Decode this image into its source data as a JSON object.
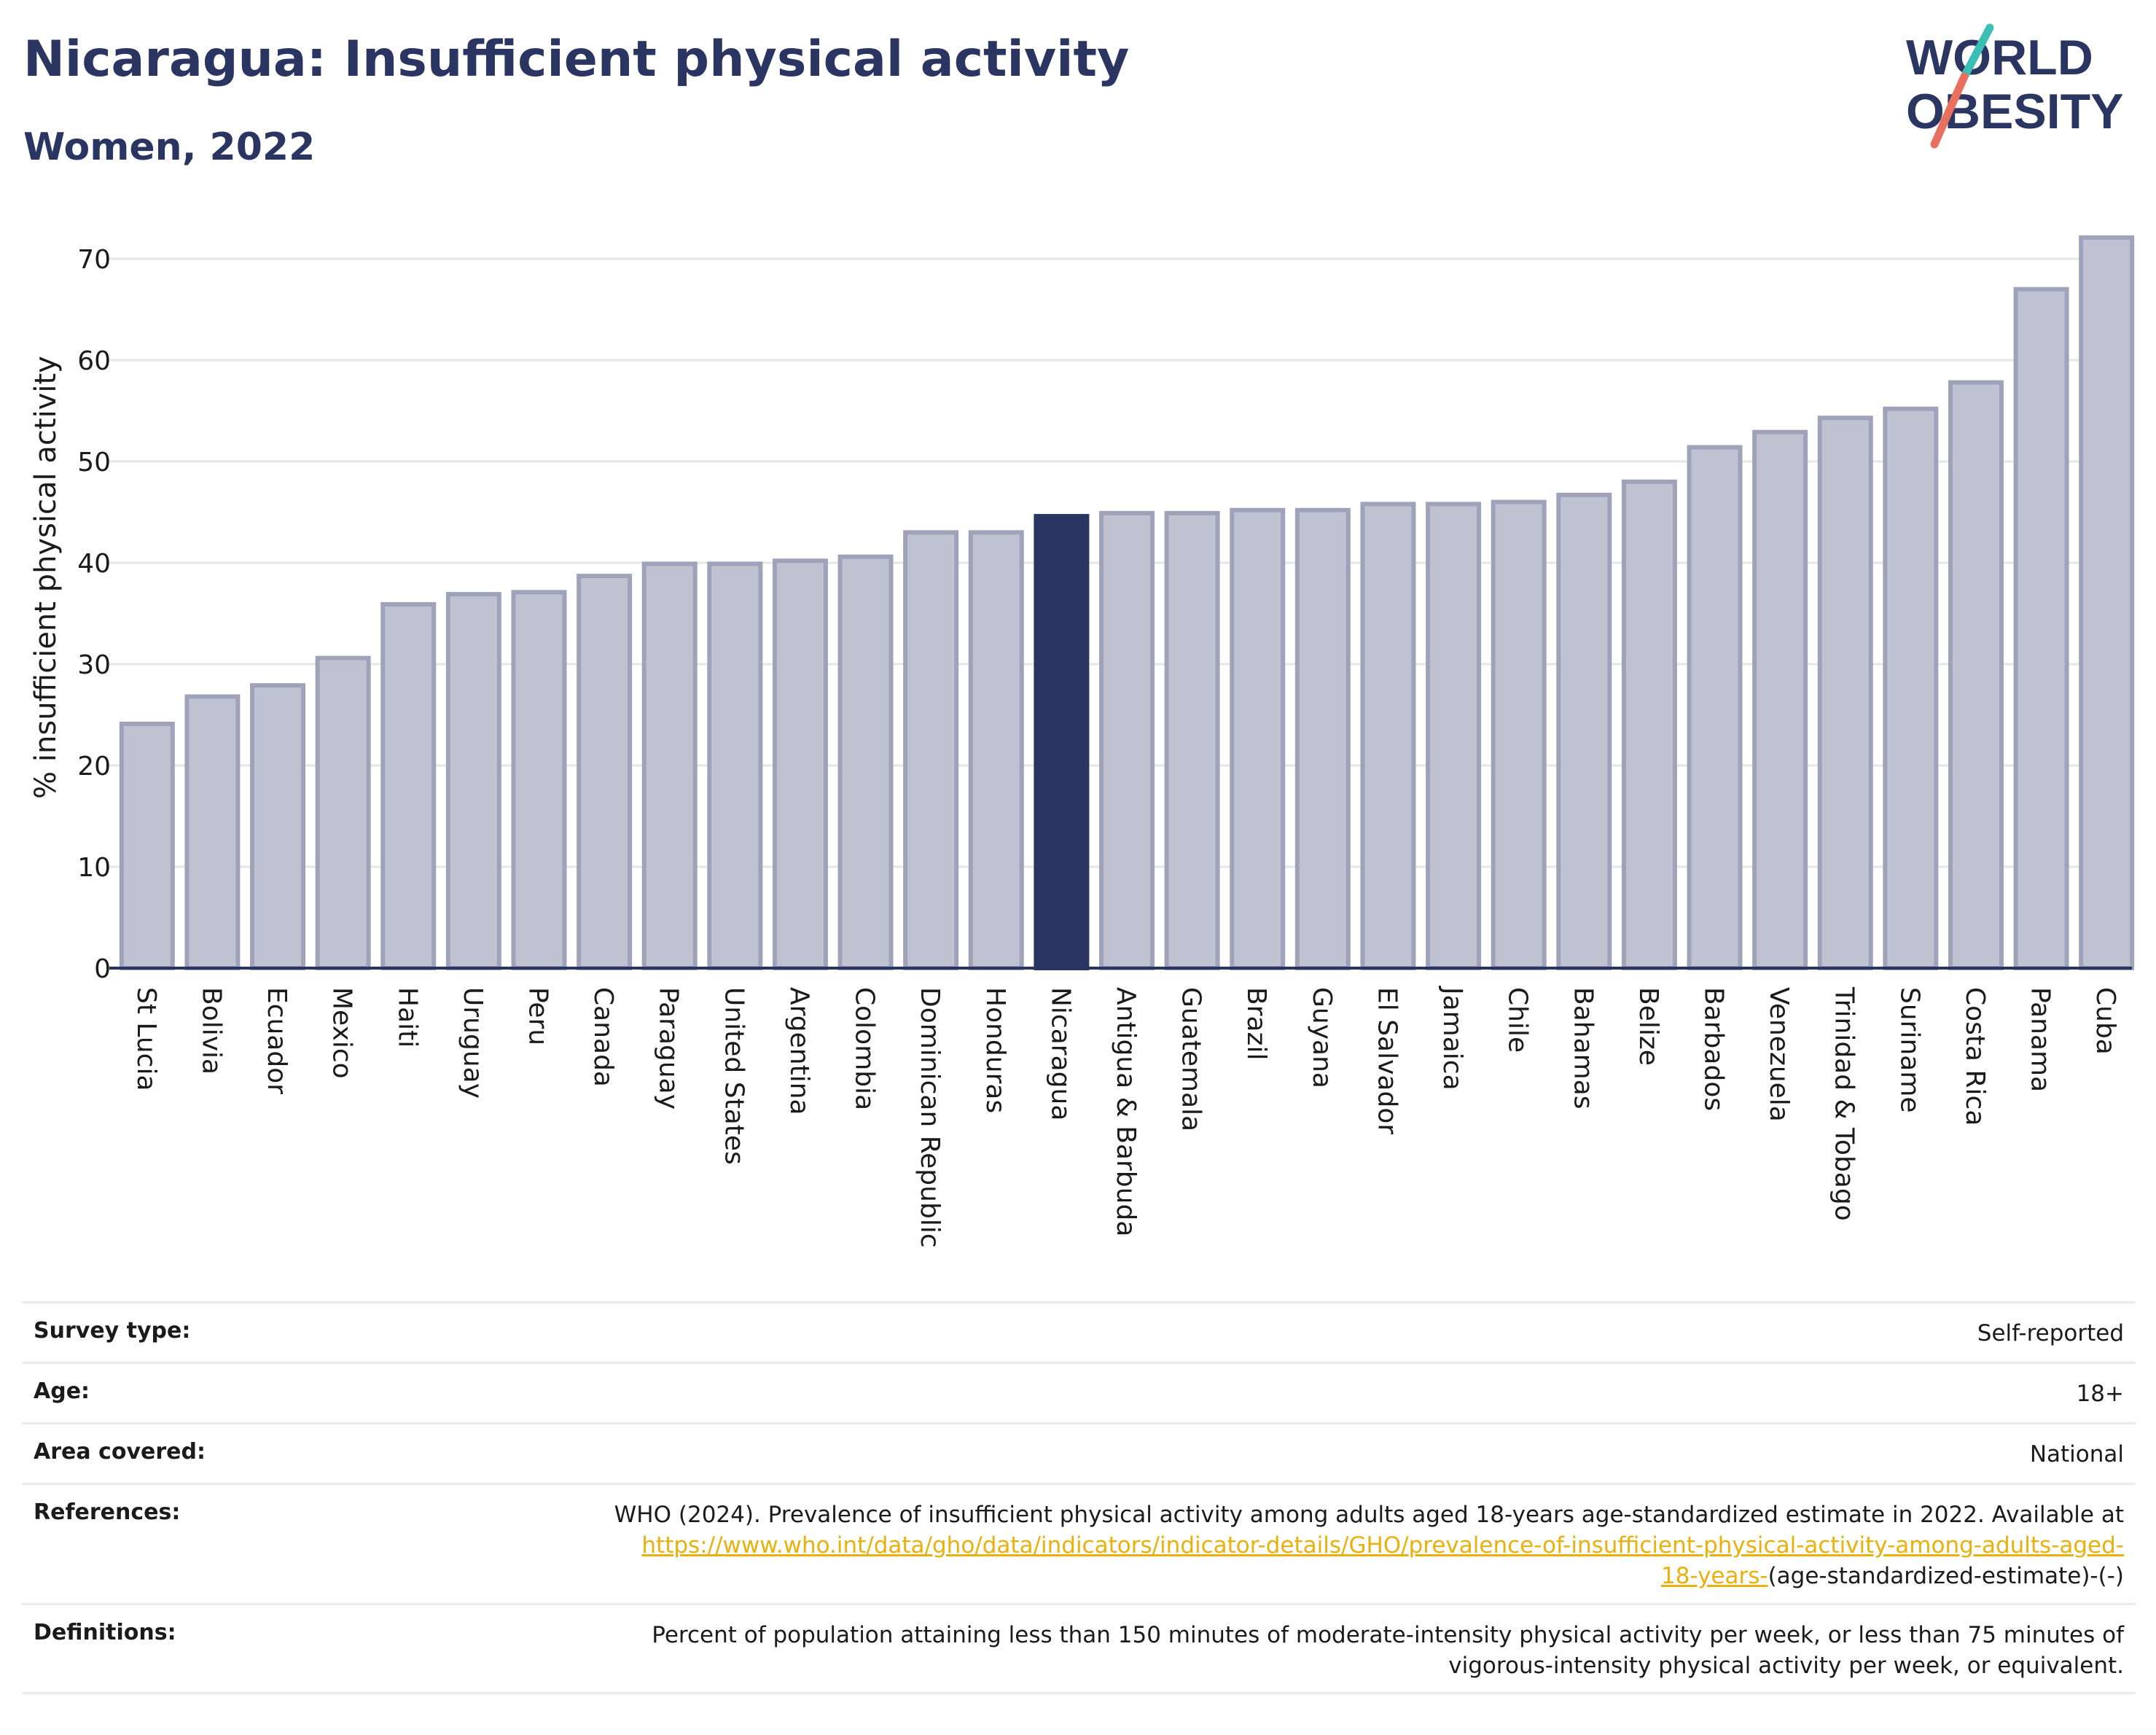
{
  "header": {
    "title": "Nicaragua: Insufficient physical activity",
    "subtitle": "Women, 2022"
  },
  "logo": {
    "line1": "WORLD",
    "line2": "OBESITY",
    "text_color": "#2b3561",
    "slash_top_color": "#3bbfb5",
    "slash_bottom_color": "#e8705f"
  },
  "colors": {
    "bar_fill": "#bfc2d0",
    "bar_stroke": "#9fa3ba",
    "highlight": "#2b3561",
    "gridline": "#e6e6e6",
    "link": "#e8b10c"
  },
  "chart_data": {
    "type": "bar",
    "title": "Nicaragua: Insufficient physical activity",
    "subtitle": "Women, 2022",
    "xlabel": "",
    "ylabel": "% insufficient physical activity",
    "ylim": [
      0,
      72.5
    ],
    "yticks": [
      0,
      10,
      20,
      30,
      40,
      50,
      60,
      70
    ],
    "grid": true,
    "highlight": "Nicaragua",
    "categories": [
      "St Lucia",
      "Bolivia",
      "Ecuador",
      "Mexico",
      "Haiti",
      "Uruguay",
      "Peru",
      "Canada",
      "Paraguay",
      "United States",
      "Argentina",
      "Colombia",
      "Dominican Republic",
      "Honduras",
      "Nicaragua",
      "Antigua & Barbuda",
      "Guatemala",
      "Brazil",
      "Guyana",
      "El Salvador",
      "Jamaica",
      "Chile",
      "Bahamas",
      "Belize",
      "Barbados",
      "Venezuela",
      "Trinidad & Tobago",
      "Suriname",
      "Costa Rica",
      "Panama",
      "Cuba"
    ],
    "values": [
      24.1,
      26.8,
      27.9,
      30.6,
      35.9,
      36.9,
      37.1,
      38.7,
      39.9,
      39.9,
      40.2,
      40.6,
      43.0,
      43.0,
      44.6,
      44.9,
      44.9,
      45.2,
      45.2,
      45.8,
      45.8,
      46.0,
      46.7,
      48.0,
      51.4,
      52.9,
      54.3,
      55.2,
      57.8,
      67.0,
      72.1
    ]
  },
  "info_table": {
    "survey_type": {
      "label": "Survey type:",
      "value": "Self-reported"
    },
    "age": {
      "label": "Age:",
      "value": "18+"
    },
    "area": {
      "label": "Area covered:",
      "value": "National"
    },
    "references": {
      "label": "References:",
      "text": "WHO (2024). Prevalence of insufficient physical activity among adults aged 18-years age-standardized estimate in 2022. Available at",
      "link_line1": "https://www.who.int/data/gho/data/indicators/indicator-details/GHO/prevalence-of-insufficient-physical-activity-among-adults-aged-",
      "link_line2": "18-years-",
      "tail": "(age-standardized-estimate)-(-)"
    },
    "definitions": {
      "label": "Definitions:",
      "line1": "Percent of population attaining less than 150 minutes of moderate-intensity physical activity per week, or less than 75 minutes of",
      "line2": "vigorous-intensity physical activity per week, or equivalent."
    }
  }
}
